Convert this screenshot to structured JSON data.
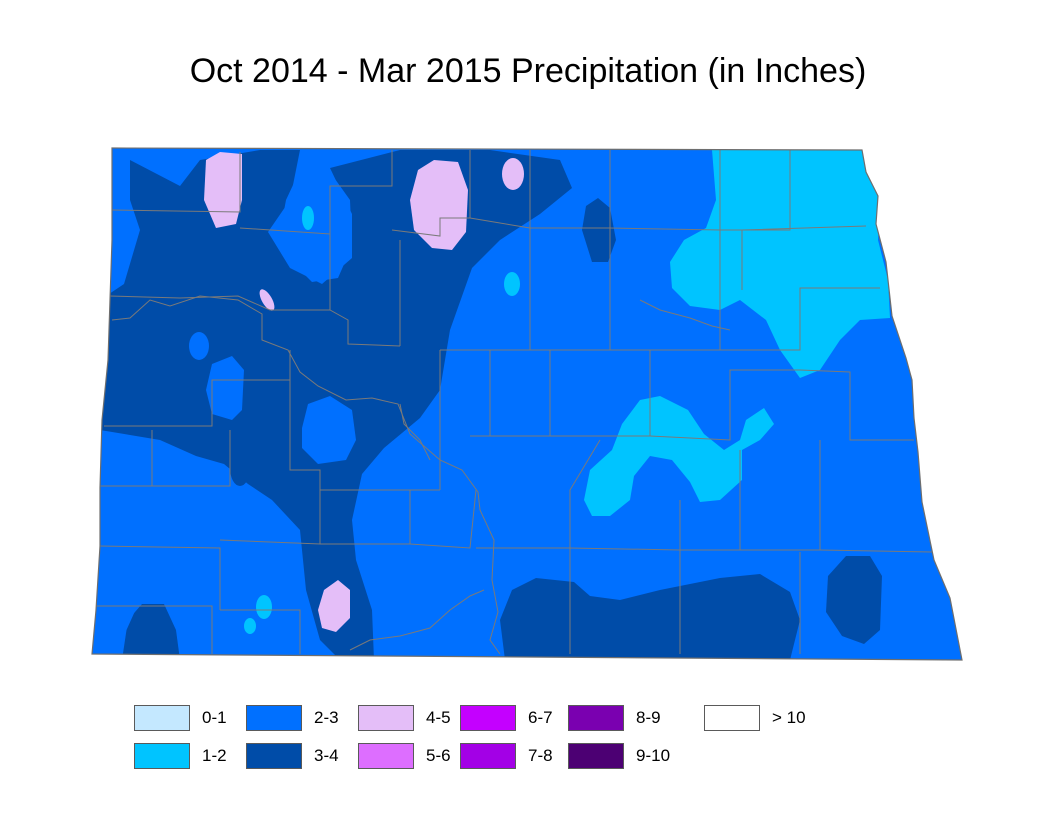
{
  "title": "Oct 2014 - Mar 2015 Precipitation (in Inches)",
  "colors": {
    "c_0_1": "#c4e8ff",
    "c_1_2": "#00c4ff",
    "c_2_3": "#0070ff",
    "c_3_4": "#004ca8",
    "c_4_5": "#e4bef8",
    "c_5_6": "#dd6eff",
    "c_6_7": "#c400ff",
    "c_7_8": "#a300e6",
    "c_8_9": "#7a00b0",
    "c_9_10": "#4c0073",
    "c_gt_10": "#ffffff",
    "county_lines": "#7a7a7a"
  },
  "legend": {
    "items": [
      {
        "label": "0-1",
        "color": "#c4e8ff"
      },
      {
        "label": "1-2",
        "color": "#00c4ff"
      },
      {
        "label": "2-3",
        "color": "#0070ff"
      },
      {
        "label": "3-4",
        "color": "#004ca8"
      },
      {
        "label": "4-5",
        "color": "#e4bef8"
      },
      {
        "label": "5-6",
        "color": "#dd6eff"
      },
      {
        "label": "6-7",
        "color": "#c400ff"
      },
      {
        "label": "7-8",
        "color": "#a300e6"
      },
      {
        "label": "8-9",
        "color": "#7a00b0"
      },
      {
        "label": "9-10",
        "color": "#4c0073"
      },
      {
        "label": "> 10",
        "color": "#ffffff"
      }
    ]
  }
}
